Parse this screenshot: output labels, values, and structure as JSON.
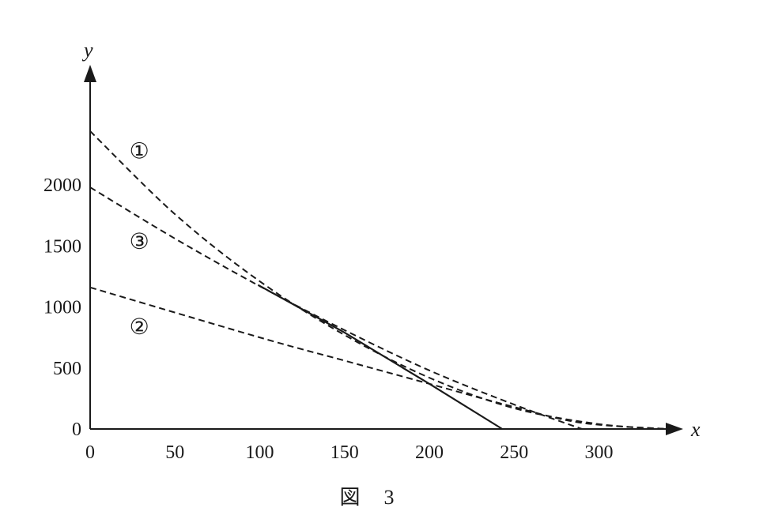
{
  "chart_data": {
    "type": "line",
    "caption": "図　3",
    "xlabel": "x",
    "ylabel": "y",
    "xlim": [
      0,
      340
    ],
    "ylim": [
      0,
      2450
    ],
    "x_ticks": [
      {
        "value": 0,
        "label": "0"
      },
      {
        "value": 50,
        "label": "50"
      },
      {
        "value": 100,
        "label": "100"
      },
      {
        "value": 150,
        "label": "150"
      },
      {
        "value": 200,
        "label": "200"
      },
      {
        "value": 250,
        "label": "250"
      },
      {
        "value": 300,
        "label": "300"
      }
    ],
    "y_ticks": [
      {
        "value": 0,
        "label": "0"
      },
      {
        "value": 500,
        "label": "500"
      },
      {
        "value": 1000,
        "label": "1000"
      },
      {
        "value": 1500,
        "label": "1500"
      },
      {
        "value": 2000,
        "label": "2000"
      }
    ],
    "series": [
      {
        "name": "①",
        "style": "dashed",
        "points": [
          [
            0,
            2440
          ],
          [
            50,
            1760
          ],
          [
            100,
            1210
          ],
          [
            150,
            770
          ],
          [
            200,
            420
          ],
          [
            250,
            170
          ],
          [
            300,
            40
          ],
          [
            340,
            0
          ]
        ],
        "label_at": [
          29,
          2280
        ]
      },
      {
        "name": "③",
        "style": "dashed",
        "points": [
          [
            0,
            1980
          ],
          [
            50,
            1560
          ],
          [
            100,
            1170
          ],
          [
            150,
            810
          ],
          [
            200,
            480
          ],
          [
            250,
            200
          ],
          [
            290,
            0
          ]
        ],
        "label_at": [
          29,
          1540
        ]
      },
      {
        "name": "②",
        "style": "dashed",
        "points": [
          [
            0,
            1160
          ],
          [
            100,
            750
          ],
          [
            150,
            560
          ],
          [
            200,
            370
          ],
          [
            250,
            180
          ],
          [
            290,
            50
          ],
          [
            340,
            0
          ]
        ],
        "label_at": [
          29,
          840
        ]
      },
      {
        "name": "",
        "style": "solid",
        "points": [
          [
            99,
            1180
          ],
          [
            150,
            790
          ],
          [
            200,
            370
          ],
          [
            243,
            0
          ]
        ]
      }
    ]
  }
}
